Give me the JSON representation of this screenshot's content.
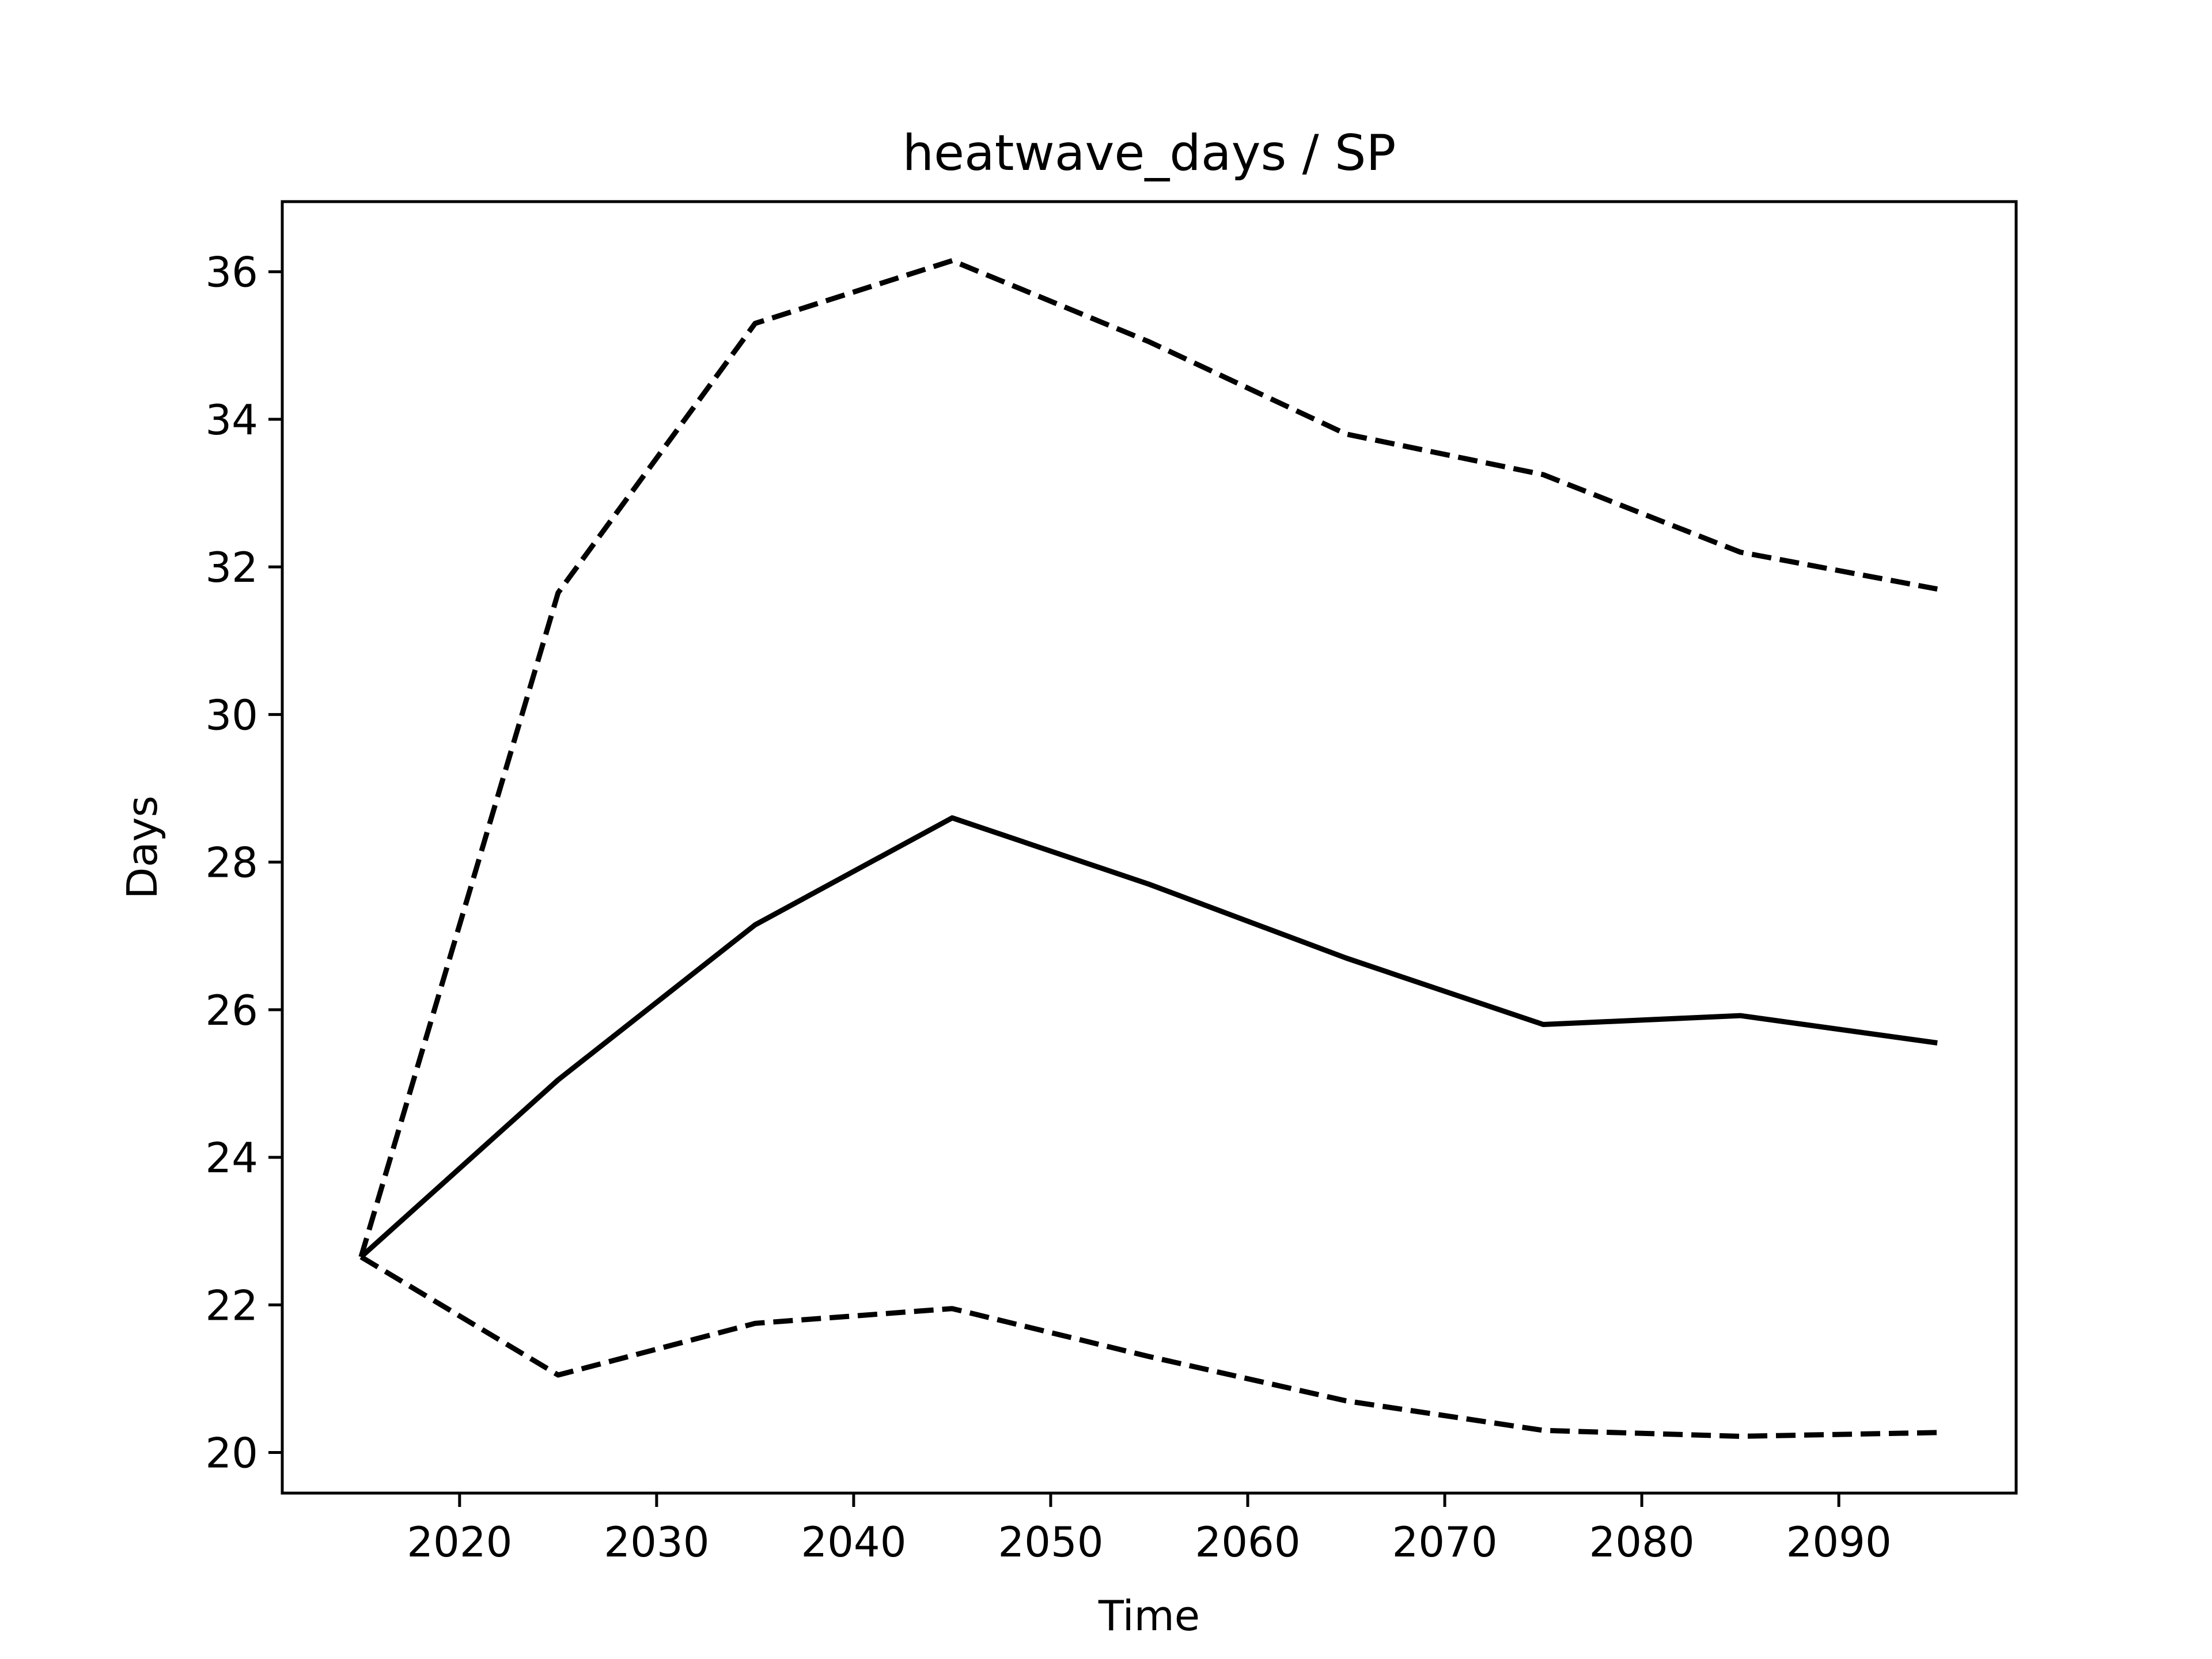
{
  "chart_data": {
    "type": "line",
    "title": "heatwave_days / SP",
    "xlabel": "Time",
    "ylabel": "Days",
    "xlim": [
      2011,
      2099
    ],
    "ylim": [
      19.45,
      36.95
    ],
    "grid": false,
    "x_ticks": [
      "2020",
      "2030",
      "2040",
      "2050",
      "2060",
      "2070",
      "2080",
      "2090"
    ],
    "y_ticks": [
      "20",
      "22",
      "24",
      "26",
      "28",
      "30",
      "32",
      "34",
      "36"
    ],
    "x": [
      2015,
      2025,
      2035,
      2045,
      2055,
      2065,
      2075,
      2085,
      2095
    ],
    "series": [
      {
        "style": "solid",
        "color": "#000000",
        "values": [
          22.65,
          25.05,
          27.15,
          28.6,
          27.7,
          26.7,
          25.8,
          25.92,
          25.55
        ]
      },
      {
        "style": "dashed",
        "color": "#000000",
        "values": [
          22.65,
          31.65,
          35.3,
          36.15,
          35.05,
          33.8,
          33.25,
          32.2,
          31.7
        ]
      },
      {
        "style": "dashed",
        "color": "#000000",
        "values": [
          22.65,
          21.05,
          21.75,
          21.95,
          21.3,
          20.7,
          20.3,
          20.22,
          20.27
        ]
      }
    ]
  }
}
